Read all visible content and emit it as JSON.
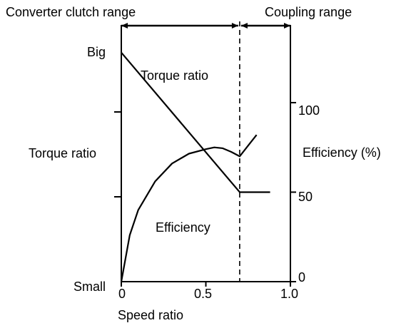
{
  "chart_data": {
    "type": "line",
    "top_ranges": [
      {
        "name": "Converter clutch range",
        "x_start": 0,
        "x_end": 0.7
      },
      {
        "name": "Coupling range",
        "x_start": 0.7,
        "x_end": 1.0
      }
    ],
    "xlabel": "Speed ratio",
    "x_ticks": [
      "0",
      "0.5",
      "1.0"
    ],
    "xlim": [
      0,
      1.0
    ],
    "left_axis": {
      "label": "Torque ratio",
      "top_label": "Big",
      "bottom_label": "Small"
    },
    "right_axis": {
      "label": "Efficiency (%)",
      "ticks": [
        "0",
        "50",
        "100"
      ],
      "ylim": [
        0,
        143
      ]
    },
    "coupling_point_x": 0.7,
    "series": [
      {
        "name": "Torque ratio",
        "axis": "left",
        "x": [
          0,
          0.7,
          0.88
        ],
        "y": [
          128,
          50,
          50
        ]
      },
      {
        "name": "Efficiency",
        "axis": "right",
        "x": [
          0,
          0.05,
          0.1,
          0.2,
          0.3,
          0.4,
          0.5,
          0.55,
          0.6,
          0.65,
          0.7,
          0.75,
          0.8
        ],
        "y": [
          0,
          26,
          40,
          56,
          66,
          71.5,
          74,
          75,
          74.5,
          72.5,
          70,
          76,
          82
        ]
      }
    ]
  }
}
